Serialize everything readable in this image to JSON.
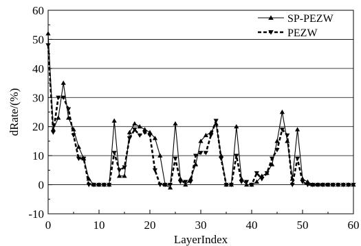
{
  "chart_data": {
    "type": "line",
    "title": "",
    "xlabel": "LayerIndex",
    "ylabel": "dRate/(%)",
    "xlim": [
      0,
      60
    ],
    "ylim": [
      -10,
      60
    ],
    "xticks": [
      0,
      10,
      20,
      30,
      40,
      50,
      60
    ],
    "yticks": [
      -10,
      0,
      10,
      20,
      30,
      40,
      50,
      60
    ],
    "grid": "horizontal",
    "legend_position": "top-right",
    "series": [
      {
        "name": "SP-PEZW",
        "style": "solid",
        "marker": "triangle-up",
        "color": "#000000",
        "x": [
          0,
          1,
          2,
          3,
          4,
          5,
          6,
          7,
          8,
          9,
          10,
          11,
          12,
          13,
          14,
          15,
          16,
          17,
          18,
          19,
          20,
          21,
          22,
          23,
          24,
          25,
          26,
          27,
          28,
          29,
          30,
          31,
          32,
          33,
          34,
          35,
          36,
          37,
          38,
          39,
          40,
          41,
          42,
          43,
          44,
          45,
          46,
          47,
          48,
          49,
          50,
          51,
          52,
          53,
          54,
          55,
          56,
          57,
          58,
          59,
          60
        ],
        "values": [
          52,
          19,
          23,
          35,
          23,
          19,
          13,
          9,
          2,
          0,
          0,
          0,
          0,
          22,
          3,
          3,
          18,
          21,
          20,
          19,
          18,
          16,
          10,
          0,
          -1,
          21,
          2,
          0,
          2,
          7,
          15,
          17,
          18,
          21,
          10,
          0,
          0,
          20,
          2,
          0,
          0,
          1,
          3,
          4,
          7,
          15,
          25,
          15,
          2,
          19,
          2,
          1,
          0,
          0,
          0,
          0,
          0,
          0,
          0,
          0,
          0
        ]
      },
      {
        "name": "PEZW",
        "style": "dashed",
        "marker": "triangle-down",
        "color": "#000000",
        "x": [
          0,
          1,
          2,
          3,
          4,
          5,
          6,
          7,
          8,
          9,
          10,
          11,
          12,
          13,
          14,
          15,
          16,
          17,
          18,
          19,
          20,
          21,
          22,
          23,
          24,
          25,
          26,
          27,
          28,
          29,
          30,
          31,
          32,
          33,
          34,
          35,
          36,
          37,
          38,
          39,
          40,
          41,
          42,
          43,
          44,
          45,
          46,
          47,
          48,
          49,
          50,
          51,
          52,
          53,
          54,
          55,
          56,
          57,
          58,
          59,
          60
        ],
        "values": [
          48,
          18,
          30,
          30,
          26,
          17,
          9,
          9,
          0,
          0,
          0,
          0,
          0,
          11,
          5,
          6,
          16,
          19,
          17,
          18,
          17,
          5,
          0,
          0,
          0,
          9,
          1,
          1,
          1,
          10,
          11,
          11,
          17,
          22,
          9,
          0,
          0,
          10,
          1,
          1,
          0,
          4,
          2,
          4,
          9,
          12,
          19,
          17,
          0,
          9,
          1,
          0,
          0,
          0,
          0,
          0,
          0,
          0,
          0,
          0,
          0
        ]
      }
    ]
  }
}
